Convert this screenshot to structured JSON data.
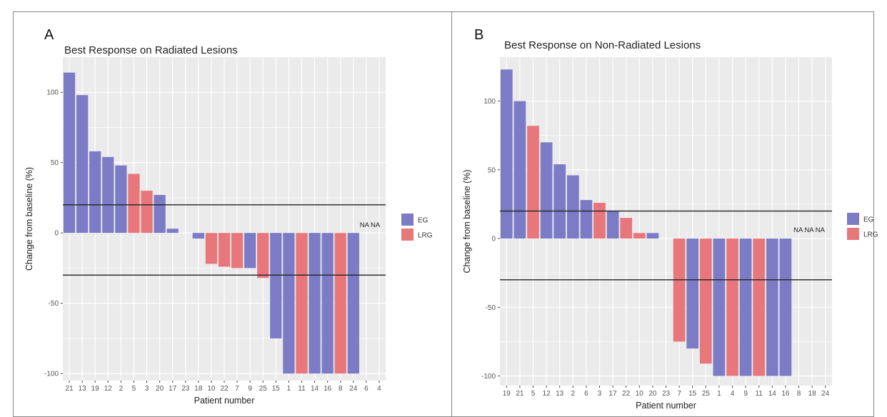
{
  "panels": [
    {
      "letter": "A",
      "title": "Best Response on Radiated Lesions"
    },
    {
      "letter": "B",
      "title": "Best Response on Non-Radiated Lesions"
    }
  ],
  "colors": {
    "EG": "#7b7bc6",
    "LRG": "#e8777b",
    "panel_bg": "#ebebeb",
    "grid": "#ffffff",
    "ref_line": "#222222"
  },
  "chart_data": [
    {
      "type": "bar",
      "title": "Best Response on Radiated Lesions",
      "xlabel": "Patient number",
      "ylabel": "Change from baseline (%)",
      "ylim": [
        -105,
        125
      ],
      "yticks": [
        -100,
        -50,
        0,
        50,
        100
      ],
      "yticklabels": [
        "-100",
        "-50",
        "0",
        "50",
        "100"
      ],
      "reference_lines": [
        20,
        -30
      ],
      "grid": true,
      "legend_position": "right",
      "legend": [
        "EG",
        "LRG"
      ],
      "categories": [
        "21",
        "13",
        "19",
        "12",
        "2",
        "5",
        "3",
        "20",
        "17",
        "23",
        "18",
        "10",
        "22",
        "7",
        "9",
        "25",
        "15",
        "1",
        "11",
        "14",
        "16",
        "8",
        "24",
        "6",
        "4"
      ],
      "values": [
        114,
        98,
        58,
        54,
        48,
        42,
        30,
        27,
        3,
        null,
        -4,
        -22,
        -24,
        -25,
        -25,
        -32,
        -75,
        -100,
        -100,
        -100,
        -100,
        -100,
        -100,
        null,
        null
      ],
      "groups": [
        "EG",
        "EG",
        "EG",
        "EG",
        "EG",
        "LRG",
        "LRG",
        "EG",
        "EG",
        null,
        "EG",
        "LRG",
        "LRG",
        "LRG",
        "EG",
        "LRG",
        "EG",
        "EG",
        "LRG",
        "EG",
        "EG",
        "LRG",
        "EG",
        null,
        null
      ],
      "annotation": "NA NA"
    },
    {
      "type": "bar",
      "title": "Best Response on Non-Radiated Lesions",
      "xlabel": "Patient number",
      "ylabel": "Change from baseline (%)",
      "ylim": [
        -107,
        132
      ],
      "yticks": [
        -100,
        -50,
        0,
        50,
        100
      ],
      "yticklabels": [
        "-100",
        "-50",
        "0",
        "50",
        "100"
      ],
      "reference_lines": [
        20,
        -30
      ],
      "grid": true,
      "legend_position": "right",
      "legend": [
        "EG",
        "LRG"
      ],
      "categories": [
        "19",
        "21",
        "5",
        "12",
        "13",
        "2",
        "6",
        "3",
        "17",
        "22",
        "10",
        "20",
        "23",
        "7",
        "15",
        "25",
        "1",
        "4",
        "9",
        "11",
        "14",
        "16",
        "8",
        "18",
        "24"
      ],
      "values": [
        123,
        100,
        82,
        70,
        54,
        46,
        28,
        26,
        20,
        15,
        4,
        4,
        null,
        -75,
        -80,
        -91,
        -100,
        -100,
        -100,
        -100,
        -100,
        -100,
        null,
        null,
        null
      ],
      "groups": [
        "EG",
        "EG",
        "LRG",
        "EG",
        "EG",
        "EG",
        "EG",
        "LRG",
        "EG",
        "LRG",
        "LRG",
        "EG",
        null,
        "LRG",
        "EG",
        "LRG",
        "EG",
        "LRG",
        "EG",
        "LRG",
        "EG",
        "EG",
        null,
        null,
        null
      ],
      "annotation": "NA NA NA"
    }
  ]
}
